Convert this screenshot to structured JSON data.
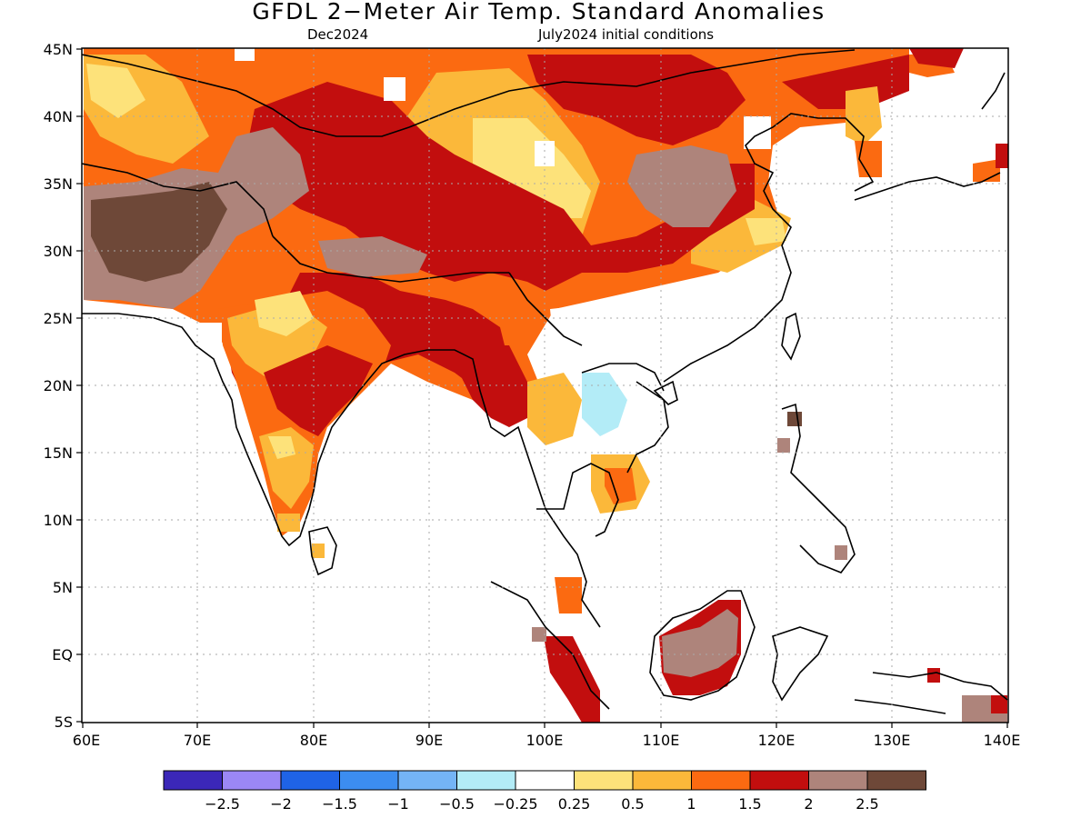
{
  "title": "GFDL 2−Meter Air Temp. Standard Anomalies",
  "valid_label": "Dec2024",
  "init_label": "July2024 initial conditions",
  "lat_labels": [
    "45N",
    "40N",
    "35N",
    "30N",
    "25N",
    "20N",
    "15N",
    "10N",
    "5N",
    "EQ",
    "5S"
  ],
  "lon_labels": [
    "60E",
    "70E",
    "80E",
    "90E",
    "100E",
    "110E",
    "120E",
    "130E",
    "140E"
  ],
  "legend": {
    "colors": [
      "#3b27b8",
      "#9b87f5",
      "#1f63e6",
      "#3c8df0",
      "#74b4f6",
      "#b3ecf7",
      "#ffffff",
      "#fde27a",
      "#fbb83a",
      "#fb6a11",
      "#c20e0e",
      "#ae847b",
      "#6e4838"
    ],
    "labels": [
      "−2.5",
      "−2",
      "−1.5",
      "−1",
      "−0.5",
      "−0.25",
      "0.25",
      "0.5",
      "1",
      "1.5",
      "2",
      "2.5"
    ]
  }
}
